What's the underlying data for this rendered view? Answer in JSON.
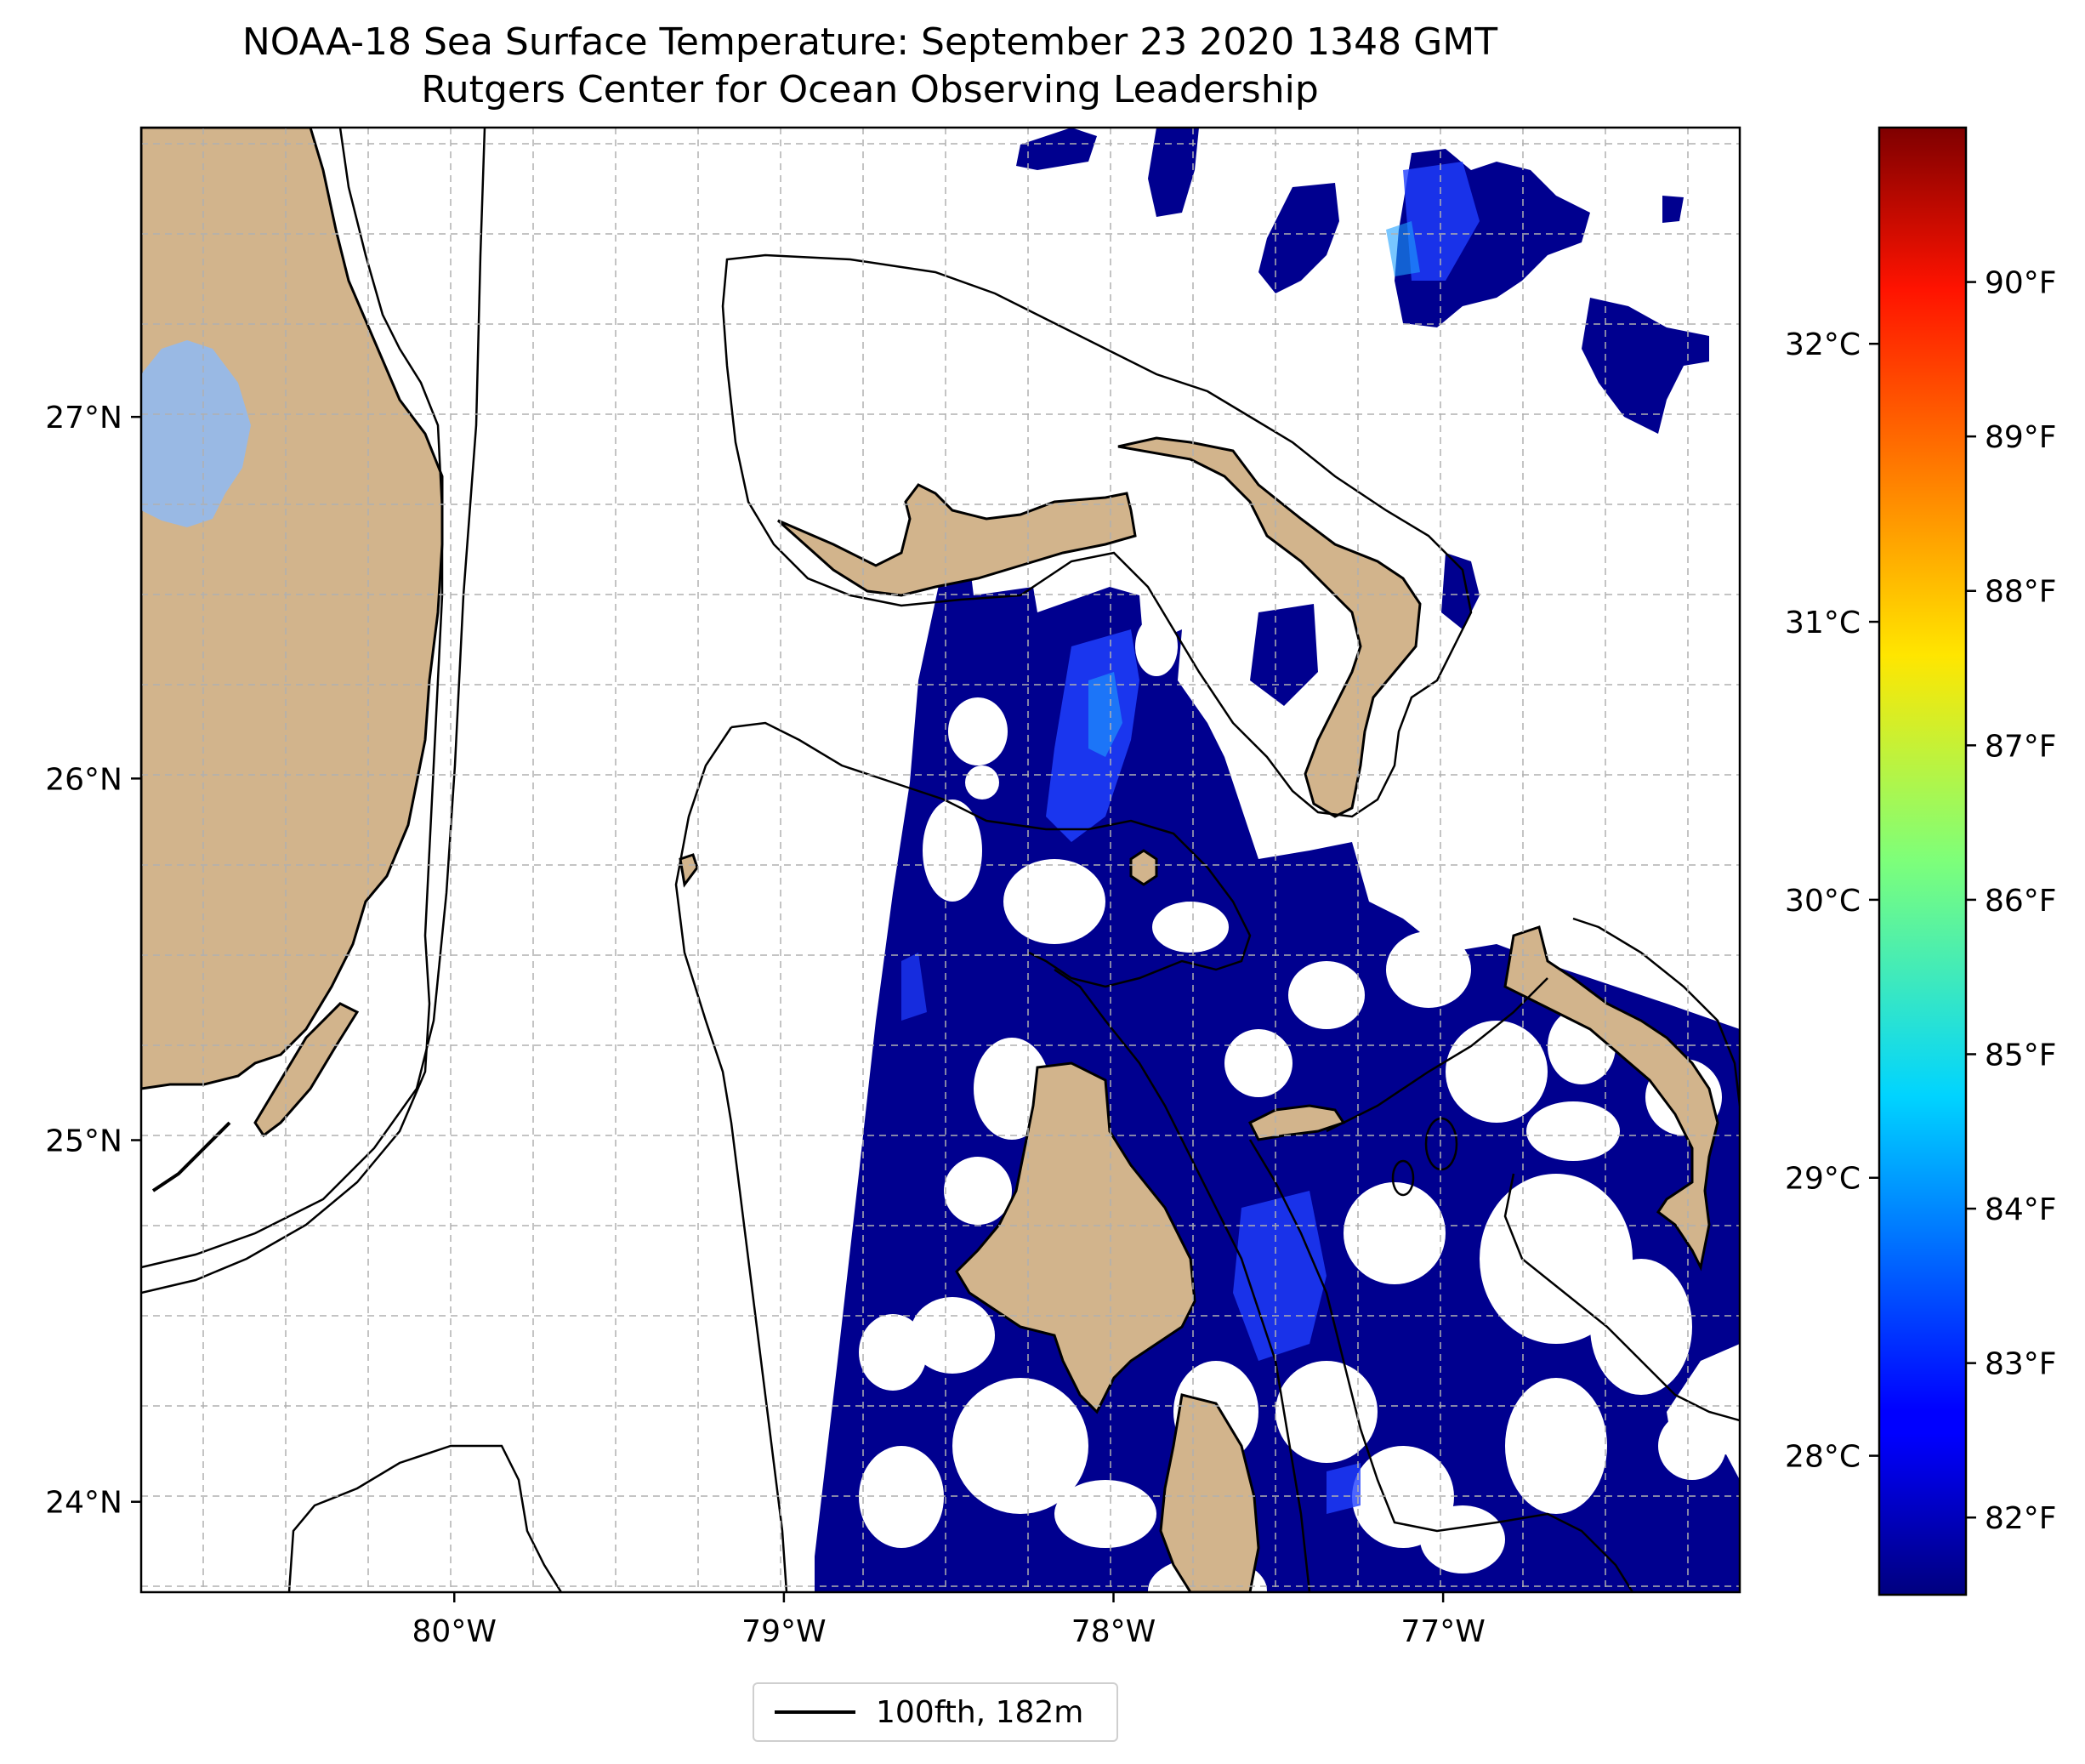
{
  "title": {
    "line1": "NOAA-18 Sea Surface Temperature: September 23 2020 1348 GMT",
    "line2": "Rutgers Center for Ocean Observing Leadership"
  },
  "map": {
    "lon_range": [
      -80.95,
      -76.1
    ],
    "lat_range": [
      23.75,
      27.8
    ],
    "lon_ticks": [
      -80,
      -79,
      -78,
      -77
    ],
    "lon_tick_labels": [
      "80°W",
      "79°W",
      "78°W",
      "77°W"
    ],
    "lat_ticks": [
      24,
      25,
      26,
      27
    ],
    "lat_tick_labels": [
      "24°N",
      "25°N",
      "26°N",
      "27°N"
    ],
    "gridlines": true,
    "colors": {
      "land": "#d2b48c",
      "lake": "#99b9e4",
      "sst_fill": "#00008f",
      "sst_warm_patch": "#1f3fff",
      "sst_peak_patch": "#1ea0ff",
      "contour": "#000000",
      "grid": "#b0b0b0"
    }
  },
  "colorbar": {
    "cmap": "jet",
    "celsius_ticks": [
      28,
      29,
      30,
      31,
      32
    ],
    "celsius_labels": [
      "28°C",
      "29°C",
      "30°C",
      "31°C",
      "32°C"
    ],
    "fahrenheit_ticks": [
      82,
      83,
      84,
      85,
      86,
      87,
      88,
      89,
      90
    ],
    "fahrenheit_labels": [
      "82°F",
      "83°F",
      "84°F",
      "85°F",
      "86°F",
      "87°F",
      "88°F",
      "89°F",
      "90°F"
    ],
    "range_f": [
      81.5,
      91.0
    ]
  },
  "legend": {
    "label": "100fth, 182m",
    "placement": "bottom-center"
  }
}
